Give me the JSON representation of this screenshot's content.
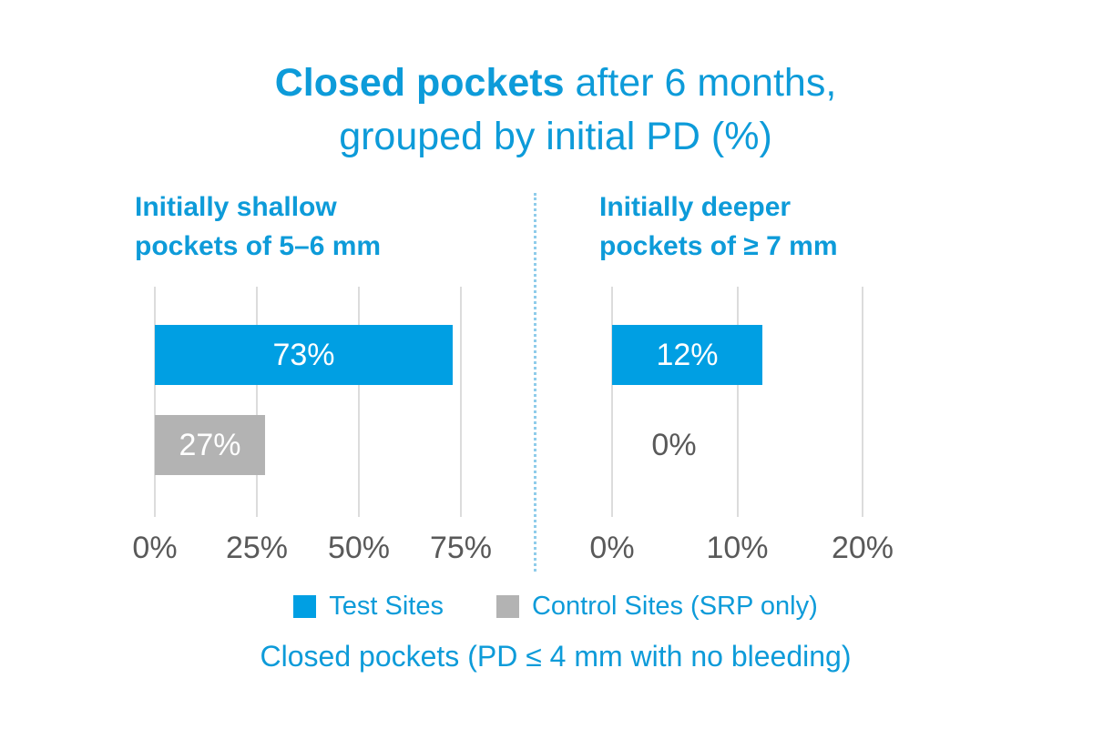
{
  "title": {
    "bold_part": "Closed pockets",
    "rest_line1": " after 6 months,",
    "line2": "grouped by initial PD (%)"
  },
  "caption": "Closed pockets (PD ≤ 4 mm with no bleeding)",
  "colors": {
    "brand_blue": "#009fe3",
    "text_blue": "#0d9bd9",
    "bar_gray": "#b3b3b3",
    "gridline_gray": "#dcdcdc",
    "axis_text_gray": "#595959",
    "divider_blue": "#8fccea",
    "bar_label_white": "#ffffff"
  },
  "legend": {
    "items": [
      {
        "label": "Test Sites",
        "color": "#009fe3"
      },
      {
        "label": "Control Sites (SRP only)",
        "color": "#b3b3b3"
      }
    ]
  },
  "chart_data": [
    {
      "type": "bar",
      "orientation": "horizontal",
      "panel_title_line1": "Initially shallow",
      "panel_title_line2": "pockets of 5–6 mm",
      "categories": [
        "Test Sites",
        "Control Sites (SRP only)"
      ],
      "series": [
        {
          "name": "Test Sites",
          "value": 73,
          "label": "73%",
          "color": "#009fe3"
        },
        {
          "name": "Control Sites (SRP only)",
          "value": 27,
          "label": "27%",
          "color": "#b3b3b3"
        }
      ],
      "xticks": [
        0,
        25,
        50,
        75
      ],
      "xtick_labels": [
        "0%",
        "25%",
        "50%",
        "75%"
      ],
      "xlim": [
        0,
        75
      ],
      "unit": "%",
      "grid": true,
      "legend_position": "bottom"
    },
    {
      "type": "bar",
      "orientation": "horizontal",
      "panel_title_line1": "Initially deeper",
      "panel_title_line2": "pockets of ≥ 7 mm",
      "categories": [
        "Test Sites",
        "Control Sites (SRP only)"
      ],
      "series": [
        {
          "name": "Test Sites",
          "value": 12,
          "label": "12%",
          "color": "#009fe3"
        },
        {
          "name": "Control Sites (SRP only)",
          "value": 0,
          "label": "0%",
          "color": "#b3b3b3"
        }
      ],
      "xticks": [
        0,
        10,
        20
      ],
      "xtick_labels": [
        "0%",
        "10%",
        "20%"
      ],
      "xlim": [
        0,
        20
      ],
      "unit": "%",
      "grid": true,
      "legend_position": "bottom"
    }
  ]
}
